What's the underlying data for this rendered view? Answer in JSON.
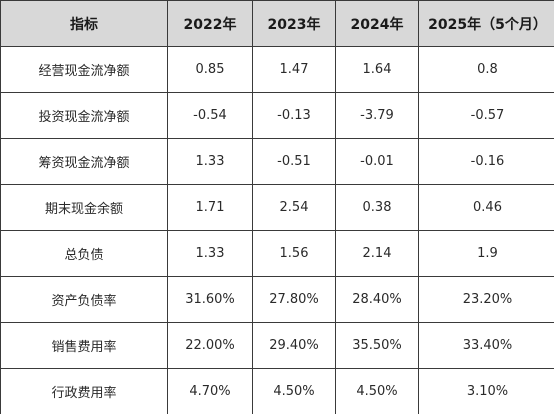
{
  "table": {
    "headers": [
      "指标",
      "2022年",
      "2023年",
      "2024年",
      "2025年（5个月）"
    ],
    "rows": [
      [
        "经营现金流净额",
        "0.85",
        "1.47",
        "1.64",
        "0.8"
      ],
      [
        "投资现金流净额",
        "-0.54",
        "-0.13",
        "-3.79",
        "-0.57"
      ],
      [
        "筹资现金流净额",
        "1.33",
        "-0.51",
        "-0.01",
        "-0.16"
      ],
      [
        "期末现金余额",
        "1.71",
        "2.54",
        "0.38",
        "0.46"
      ],
      [
        "总负债",
        "1.33",
        "1.56",
        "2.14",
        "1.9"
      ],
      [
        "资产负债率",
        "31.60%",
        "27.80%",
        "28.40%",
        "23.20%"
      ],
      [
        "销售费用率",
        "22.00%",
        "29.40%",
        "35.50%",
        "33.40%"
      ],
      [
        "行政费用率",
        "4.70%",
        "4.50%",
        "4.50%",
        "3.10%"
      ]
    ]
  }
}
